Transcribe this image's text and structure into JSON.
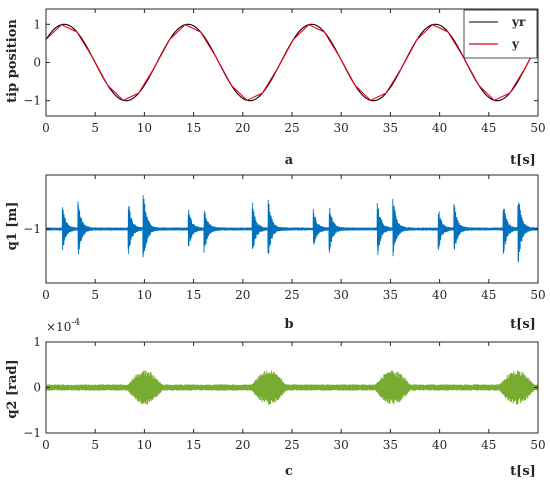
{
  "figure_labels": [
    "a",
    "b",
    "c"
  ],
  "chart_data": [
    {
      "type": "line",
      "panel": "a",
      "xlabel": "t[s]",
      "ylabel": "tip position",
      "xlim": [
        0,
        50
      ],
      "ylim": [
        -1.4,
        1.4
      ],
      "xticks": [
        "0",
        "5",
        "10",
        "15",
        "20",
        "25",
        "30",
        "35",
        "40",
        "45",
        "50"
      ],
      "yticks": [
        "-1",
        "0",
        "1"
      ],
      "grid": false,
      "legend_position": "top-right",
      "series": [
        {
          "name": "yr",
          "color": "#000000",
          "kind": "sine",
          "amplitude": 1.0,
          "period_s": 12.57,
          "phase_deg": 37
        },
        {
          "name": "y",
          "color": "#e8001f",
          "kind": "piecewise-sine",
          "amplitude": 1.0,
          "period_s": 12.57,
          "phase_deg": 37,
          "segments_per_period": 8
        }
      ]
    },
    {
      "type": "line",
      "panel": "b",
      "xlabel": "t[s]",
      "ylabel": "q1 [m]",
      "xlim": [
        0,
        50
      ],
      "xticks": [
        "0",
        "5",
        "10",
        "15",
        "20",
        "25",
        "30",
        "35",
        "40",
        "45",
        "50"
      ],
      "yticks": [
        "-1"
      ],
      "grid": false,
      "series": [
        {
          "color": "#0072bd",
          "kind": "oscillation-bursts",
          "baseline": 0,
          "base_noise": 0.04,
          "burst_times_s": [
            1.7,
            3.3,
            8.4,
            9.9,
            14.5,
            16.1,
            21.0,
            22.6,
            27.2,
            28.8,
            33.7,
            35.3,
            39.9,
            41.5,
            46.5,
            48.0
          ],
          "burst_amplitudes": [
            0.55,
            0.7,
            0.65,
            1.0,
            0.5,
            0.6,
            0.65,
            0.75,
            0.5,
            0.6,
            0.7,
            0.75,
            0.5,
            0.6,
            0.65,
            0.9
          ]
        }
      ]
    },
    {
      "type": "line",
      "panel": "c",
      "xlabel": "t[s]",
      "ylabel": "q2 [rad]",
      "scale_label": "×10",
      "scale_exponent": "-4",
      "xlim": [
        0,
        50
      ],
      "ylim": [
        -1,
        1
      ],
      "xticks": [
        "0",
        "5",
        "10",
        "15",
        "20",
        "25",
        "30",
        "35",
        "40",
        "45",
        "50"
      ],
      "yticks": [
        "-1",
        "0",
        "1"
      ],
      "grid": false,
      "series": [
        {
          "color": "#77ac30",
          "kind": "oscillation-bursts",
          "baseline": 0,
          "base_noise": 0.07,
          "burst_times_s": [
            8.3,
            20.9,
            33.5,
            46.1
          ],
          "burst_amplitudes": [
            0.33,
            0.33,
            0.33,
            0.33
          ],
          "burst_duration_s": 3.5
        }
      ]
    }
  ]
}
